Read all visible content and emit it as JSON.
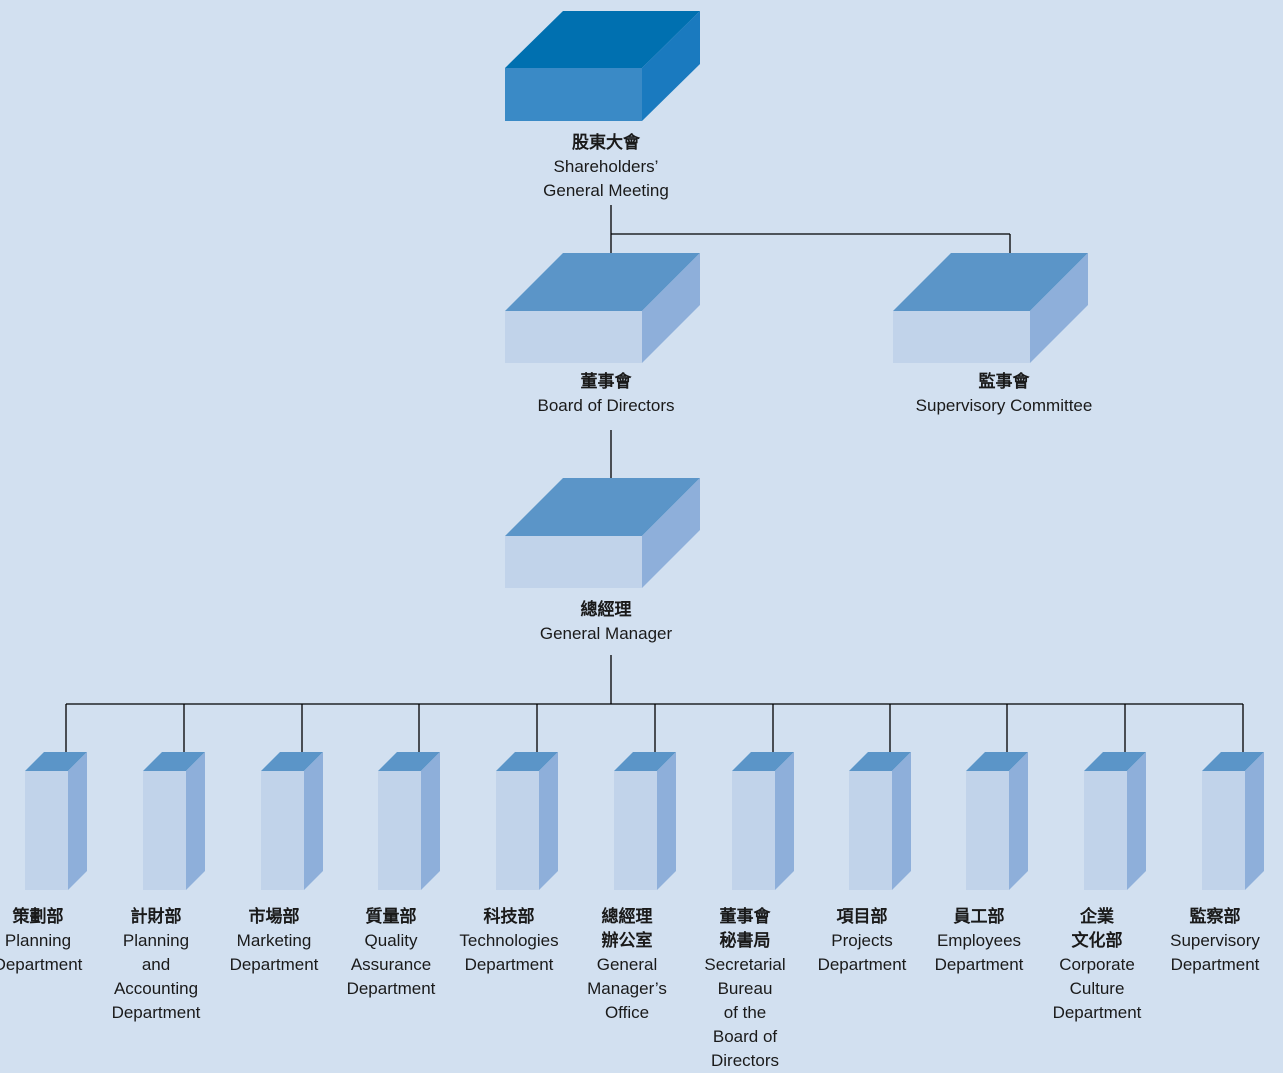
{
  "colors": {
    "background": "#d2e0f0",
    "top_box_top": "#0070b0",
    "top_box_front": "#3a8ac6",
    "top_box_side": "#1a7abf",
    "box_top": "#5b95c8",
    "box_front": "#c1d3ea",
    "box_side": "#8eafda",
    "line": "#000000"
  },
  "nodes": {
    "shareholders": {
      "zh": "股東大會",
      "en": "Shareholders’\nGeneral Meeting"
    },
    "board": {
      "zh": "董事會",
      "en": "Board of Directors"
    },
    "supervisory_committee": {
      "zh": "監事會",
      "en": "Supervisory Committee"
    },
    "general_manager": {
      "zh": "總經理",
      "en": "General Manager"
    }
  },
  "departments": [
    {
      "zh": "策劃部",
      "en": "Planning\nDepartment"
    },
    {
      "zh": "計財部",
      "en": "Planning\nand\nAccounting\nDepartment"
    },
    {
      "zh": "市場部",
      "en": "Marketing\nDepartment"
    },
    {
      "zh": "質量部",
      "en": "Quality\nAssurance\nDepartment"
    },
    {
      "zh": "科技部",
      "en": "Technologies\nDepartment"
    },
    {
      "zh": "總經理\n辦公室",
      "en": "General\nManager’s\nOffice"
    },
    {
      "zh": "董事會\n秘書局",
      "en": "Secretarial\nBureau\nof the\nBoard of\nDirectors"
    },
    {
      "zh": "項目部",
      "en": "Projects\nDepartment"
    },
    {
      "zh": "員工部",
      "en": "Employees\nDepartment"
    },
    {
      "zh": "企業\n文化部",
      "en": "Corporate\nCulture\nDepartment"
    },
    {
      "zh": "監察部",
      "en": "Supervisory\nDepartment"
    }
  ]
}
